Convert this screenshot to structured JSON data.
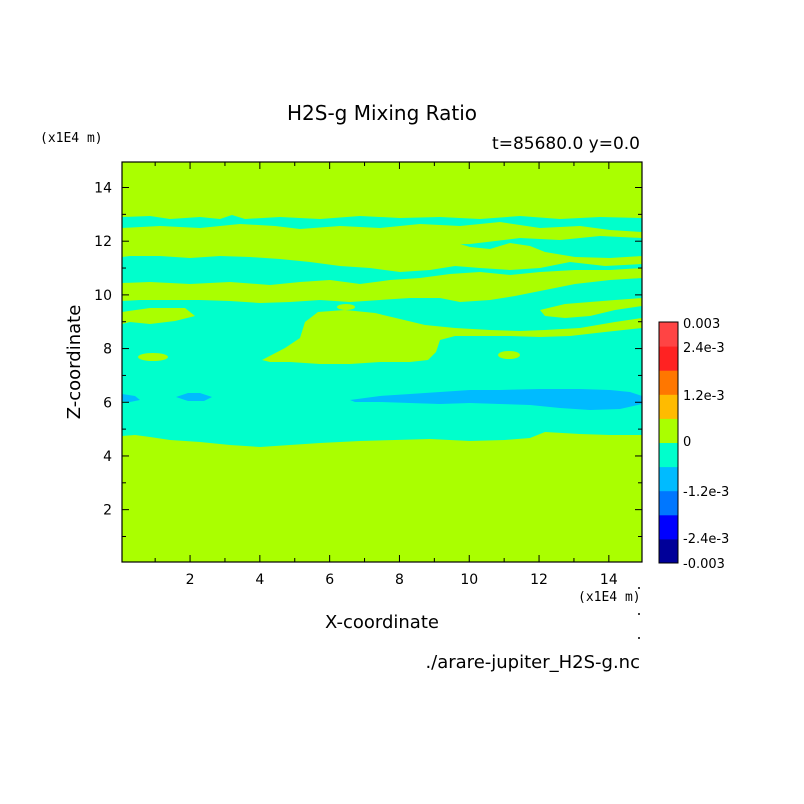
{
  "chart_data": {
    "type": "heatmap",
    "title": "H2S-g Mixing Ratio",
    "subtitle": "t=85680.0 y=0.0",
    "xlabel": "X-coordinate",
    "ylabel": "Z-coordinate",
    "x_unit": "(x1E4 m)",
    "z_unit": "(x1E4 m)",
    "xlim": [
      0.05,
      14.95
    ],
    "ylim": [
      0.05,
      14.95
    ],
    "x_ticks": [
      "2",
      "4",
      "6",
      "8",
      "10",
      "12",
      "14"
    ],
    "y_ticks": [
      "2",
      "4",
      "6",
      "8",
      "10",
      "12",
      "14"
    ],
    "colorbar": {
      "min": "-0.003",
      "max": "0.003",
      "labels": [
        "0.003",
        "2.4e-3",
        "1.2e-3",
        "0",
        "-1.2e-3",
        "-2.4e-3",
        "-0.003"
      ],
      "colors": [
        "#000099",
        "#0000ff",
        "#0077ff",
        "#00bbff",
        "#00ffcc",
        "#aaff00",
        "#ffbb00",
        "#ff7700",
        "#ff2222",
        "#ff4444"
      ]
    },
    "fields": {
      "positive_small": "#aaff00",
      "negative_small": "#00ffcc",
      "negative_medium": "#00bbff"
    },
    "source": "./arare-jupiter_H2S-g.nc"
  }
}
